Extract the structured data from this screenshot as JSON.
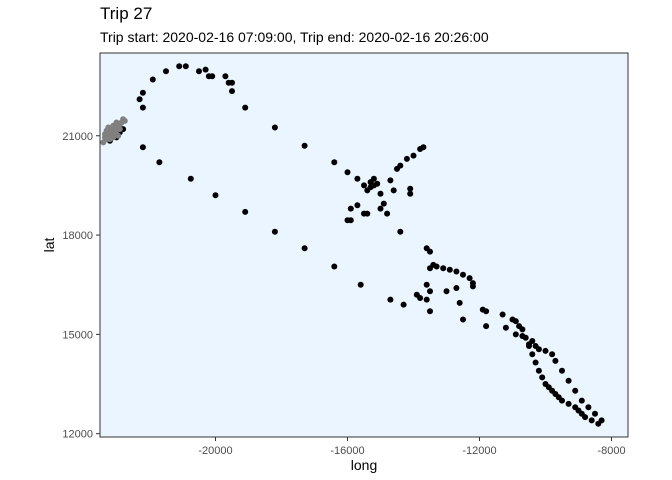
{
  "chart_data": {
    "type": "scatter",
    "title": "Trip 27",
    "subtitle": "Trip start: 2020-02-16 07:09:00, Trip end: 2020-02-16 20:26:00",
    "xlabel": "long",
    "ylabel": "lat",
    "xlim": [
      -23500,
      -7500
    ],
    "ylim": [
      11900,
      23500
    ],
    "xticks": [
      -20000,
      -16000,
      -12000,
      -8000
    ],
    "xtick_labels": [
      "-20000",
      "-16000",
      "-12000",
      "-8000"
    ],
    "yticks": [
      12000,
      15000,
      18000,
      21000
    ],
    "ytick_labels": [
      "12000",
      "15000",
      "18000",
      "21000"
    ],
    "grid": false,
    "panel_background": "#EBF5FF",
    "series": [
      {
        "color": "#000000",
        "points": [
          [
            -23200,
            20850
          ],
          [
            -23100,
            21050
          ],
          [
            -23000,
            20950
          ],
          [
            -22900,
            21100
          ],
          [
            -22800,
            21200
          ],
          [
            -22300,
            22100
          ],
          [
            -22200,
            22300
          ],
          [
            -22200,
            21850
          ],
          [
            -22200,
            20650
          ],
          [
            -21900,
            22700
          ],
          [
            -21700,
            20200
          ],
          [
            -21500,
            22950
          ],
          [
            -21100,
            23100
          ],
          [
            -20900,
            23100
          ],
          [
            -20750,
            19700
          ],
          [
            -20500,
            22950
          ],
          [
            -20300,
            23000
          ],
          [
            -20200,
            22800
          ],
          [
            -20100,
            22800
          ],
          [
            -20000,
            19200
          ],
          [
            -19700,
            22800
          ],
          [
            -19600,
            22600
          ],
          [
            -19500,
            22600
          ],
          [
            -19500,
            22350
          ],
          [
            -19100,
            21850
          ],
          [
            -19100,
            18700
          ],
          [
            -18200,
            21250
          ],
          [
            -18200,
            18100
          ],
          [
            -17300,
            20700
          ],
          [
            -17300,
            17600
          ],
          [
            -16400,
            20200
          ],
          [
            -16400,
            17050
          ],
          [
            -16000,
            19900
          ],
          [
            -16000,
            18450
          ],
          [
            -15900,
            18800
          ],
          [
            -15900,
            18450
          ],
          [
            -15700,
            19700
          ],
          [
            -15700,
            18900
          ],
          [
            -15500,
            19500
          ],
          [
            -15500,
            18650
          ],
          [
            -15400,
            19350
          ],
          [
            -15400,
            18650
          ],
          [
            -15300,
            19600
          ],
          [
            -15300,
            19450
          ],
          [
            -15200,
            19700
          ],
          [
            -15200,
            19500
          ],
          [
            -15100,
            19550
          ],
          [
            -15000,
            19250
          ],
          [
            -15000,
            18800
          ],
          [
            -14900,
            18950
          ],
          [
            -14800,
            18650
          ],
          [
            -14700,
            19650
          ],
          [
            -14600,
            19350
          ],
          [
            -14500,
            20000
          ],
          [
            -14400,
            20100
          ],
          [
            -14400,
            18100
          ],
          [
            -14200,
            20300
          ],
          [
            -14100,
            19400
          ],
          [
            -14100,
            19250
          ],
          [
            -14000,
            20400
          ],
          [
            -13800,
            20600
          ],
          [
            -13700,
            20650
          ],
          [
            -15600,
            16500
          ],
          [
            -14700,
            16050
          ],
          [
            -14300,
            15900
          ],
          [
            -13900,
            16200
          ],
          [
            -13800,
            16100
          ],
          [
            -13600,
            17600
          ],
          [
            -13500,
            17500
          ],
          [
            -13600,
            16500
          ],
          [
            -13500,
            17000
          ],
          [
            -13500,
            16300
          ],
          [
            -13400,
            17100
          ],
          [
            -13300,
            17050
          ],
          [
            -13100,
            17000
          ],
          [
            -12900,
            16950
          ],
          [
            -12700,
            16900
          ],
          [
            -12500,
            16800
          ],
          [
            -12300,
            16700
          ],
          [
            -12200,
            16550
          ],
          [
            -13600,
            16050
          ],
          [
            -13500,
            15700
          ],
          [
            -13000,
            16300
          ],
          [
            -12700,
            16400
          ],
          [
            -12600,
            15950
          ],
          [
            -12500,
            15450
          ],
          [
            -11900,
            15750
          ],
          [
            -11800,
            15700
          ],
          [
            -11800,
            15250
          ],
          [
            -11300,
            15600
          ],
          [
            -11200,
            15200
          ],
          [
            -11000,
            15450
          ],
          [
            -10900,
            15400
          ],
          [
            -10900,
            15000
          ],
          [
            -10800,
            15250
          ],
          [
            -10700,
            15150
          ],
          [
            -10700,
            14950
          ],
          [
            -10600,
            14900
          ],
          [
            -10500,
            14700
          ],
          [
            -10400,
            14800
          ],
          [
            -10300,
            14650
          ],
          [
            -10400,
            14400
          ],
          [
            -10300,
            14150
          ],
          [
            -10200,
            13900
          ],
          [
            -10100,
            13700
          ],
          [
            -10000,
            13500
          ],
          [
            -9900,
            13400
          ],
          [
            -9800,
            13300
          ],
          [
            -9700,
            13200
          ],
          [
            -9600,
            13100
          ],
          [
            -9500,
            13000
          ],
          [
            -9300,
            12900
          ],
          [
            -9100,
            12800
          ],
          [
            -9000,
            12700
          ],
          [
            -8900,
            12600
          ],
          [
            -8800,
            12500
          ],
          [
            -8600,
            12400
          ],
          [
            -8400,
            12300
          ],
          [
            -8300,
            12400
          ],
          [
            -8500,
            12600
          ],
          [
            -8700,
            12800
          ],
          [
            -8900,
            13000
          ],
          [
            -9100,
            13300
          ],
          [
            -9300,
            13600
          ],
          [
            -9500,
            13900
          ],
          [
            -9700,
            14200
          ],
          [
            -9800,
            14400
          ],
          [
            -10000,
            14500
          ],
          [
            -10200,
            14550
          ],
          [
            -10500,
            14650
          ],
          [
            -12200,
            16450
          ]
        ]
      },
      {
        "color": "#808080",
        "points": [
          [
            -23400,
            20800
          ],
          [
            -23300,
            20900
          ],
          [
            -23350,
            21050
          ],
          [
            -23250,
            21000
          ],
          [
            -23300,
            21150
          ],
          [
            -23200,
            21100
          ],
          [
            -23150,
            21200
          ],
          [
            -23250,
            21250
          ],
          [
            -23100,
            21300
          ],
          [
            -23050,
            21150
          ],
          [
            -23000,
            21050
          ],
          [
            -22950,
            21250
          ],
          [
            -23100,
            20950
          ],
          [
            -22900,
            21350
          ],
          [
            -22850,
            21400
          ],
          [
            -22800,
            21500
          ],
          [
            -22750,
            21450
          ],
          [
            -23200,
            20900
          ],
          [
            -23000,
            21400
          ],
          [
            -22950,
            21000
          ],
          [
            -23350,
            20950
          ],
          [
            -23150,
            21050
          ],
          [
            -22900,
            21200
          ],
          [
            -23050,
            21300
          ]
        ]
      }
    ]
  }
}
